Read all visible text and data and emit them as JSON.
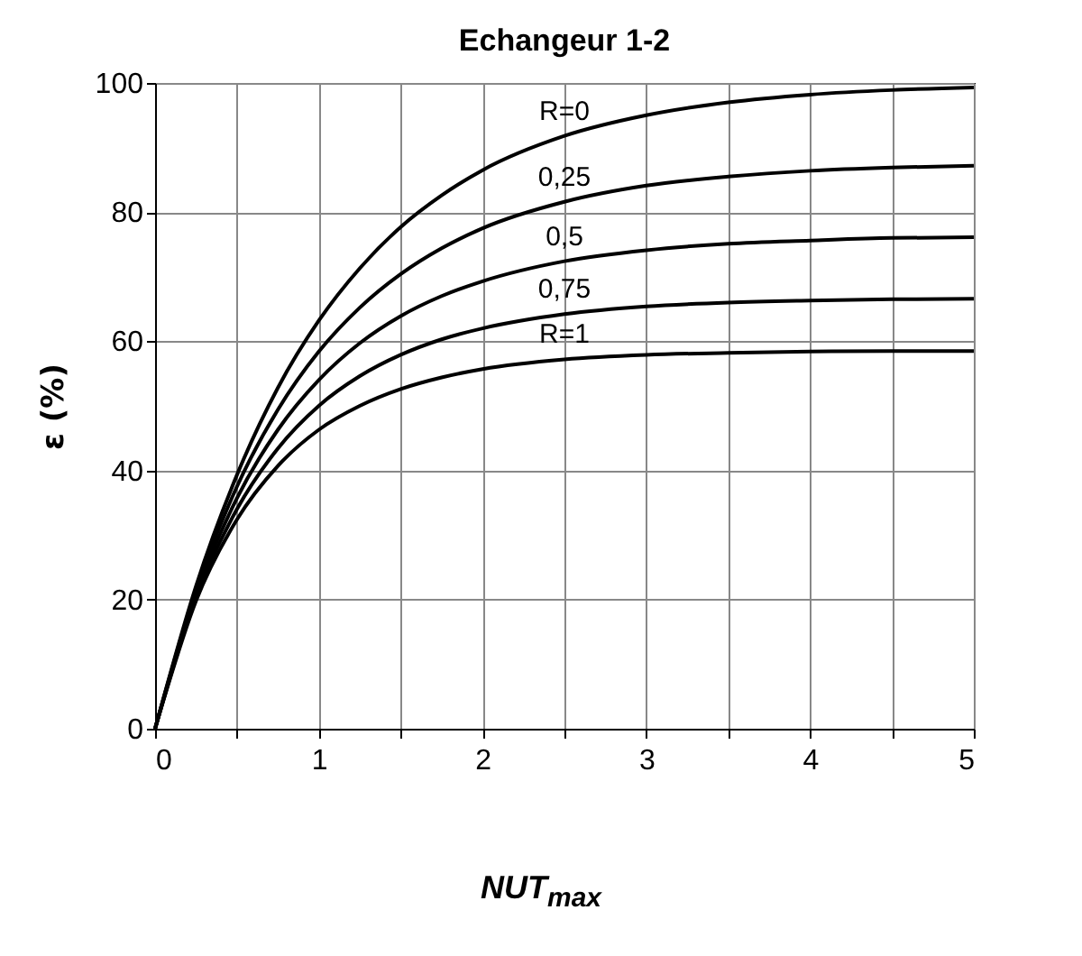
{
  "chart_data": {
    "type": "line",
    "title": "Echangeur 1-2",
    "xlabel": "NUT$_{max}$",
    "ylabel": "ε (%)",
    "x": [
      0,
      0.25,
      0.5,
      0.75,
      1,
      1.25,
      1.5,
      1.75,
      2,
      2.5,
      3,
      3.5,
      4,
      4.5,
      5
    ],
    "series": [
      {
        "name": "R=0",
        "color": "#000000",
        "values": [
          0,
          22.1,
          39.3,
          52.8,
          63.2,
          71.3,
          77.7,
          82.6,
          86.5,
          91.8,
          95.0,
          97.0,
          98.2,
          98.9,
          99.3
        ]
      },
      {
        "name": "0,25",
        "color": "#000000",
        "values": [
          0,
          21.5,
          37.5,
          49.4,
          58.4,
          65.2,
          70.4,
          74.4,
          77.5,
          81.6,
          84.1,
          85.5,
          86.4,
          86.9,
          87.2
        ]
      },
      {
        "name": "0,5",
        "color": "#000000",
        "values": [
          0,
          20.9,
          35.7,
          46.3,
          54.0,
          59.7,
          63.9,
          67.0,
          69.3,
          72.4,
          74.1,
          75.1,
          75.6,
          76.0,
          76.1
        ]
      },
      {
        "name": "0,75",
        "color": "#000000",
        "values": [
          0,
          20.4,
          34.0,
          43.4,
          50.0,
          54.6,
          57.9,
          60.3,
          62.0,
          64.2,
          65.4,
          66.0,
          66.3,
          66.5,
          66.6
        ]
      },
      {
        "name": "R=1",
        "color": "#000000",
        "values": [
          0,
          19.8,
          32.4,
          40.7,
          46.3,
          50.0,
          52.6,
          54.4,
          55.7,
          57.2,
          57.9,
          58.2,
          58.4,
          58.5,
          58.5
        ]
      }
    ],
    "xlim": [
      0,
      5
    ],
    "xticks": [
      0,
      {
        "value": 0.5,
        "label": null
      },
      1,
      {
        "value": 1.5,
        "label": null
      },
      2,
      {
        "value": 2.5,
        "label": null
      },
      3,
      {
        "value": 3.5,
        "label": null
      },
      4,
      {
        "value": 4.5,
        "label": null
      },
      5
    ],
    "ylim": [
      0,
      100
    ],
    "yticks": [
      0,
      20,
      40,
      60,
      80,
      100
    ],
    "grid": true,
    "legend": false,
    "marker": "none",
    "line_style": "solid"
  }
}
